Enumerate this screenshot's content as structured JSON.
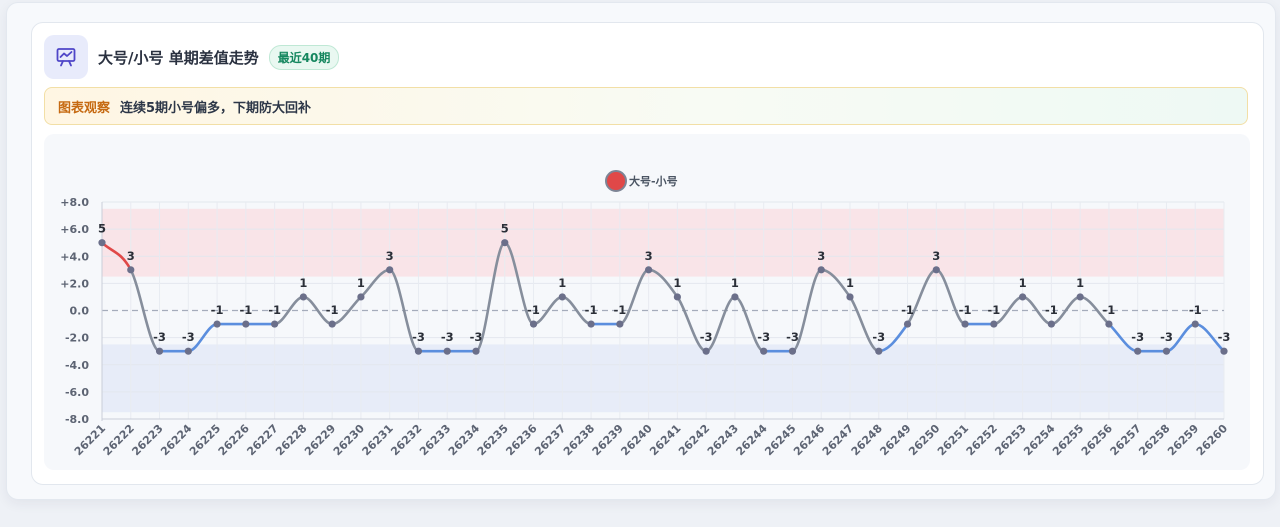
{
  "header": {
    "title": "大号/小号 单期差值走势",
    "badge": "最近40期",
    "icon": "chart-line-icon"
  },
  "observation": {
    "label": "图表观察",
    "text": "连续5期小号偏多，下期防大回补"
  },
  "chart_data": {
    "type": "line",
    "smooth": true,
    "legend": {
      "label": "大号-小号",
      "position": "top-center",
      "color": "#e04848"
    },
    "x": [
      "26221",
      "26222",
      "26223",
      "26224",
      "26225",
      "26226",
      "26227",
      "26228",
      "26229",
      "26230",
      "26231",
      "26232",
      "26233",
      "26234",
      "26235",
      "26236",
      "26237",
      "26238",
      "26239",
      "26240",
      "26241",
      "26242",
      "26243",
      "26244",
      "26245",
      "26246",
      "26247",
      "26248",
      "26249",
      "26250",
      "26251",
      "26252",
      "26253",
      "26254",
      "26255",
      "26256",
      "26257",
      "26258",
      "26259",
      "26260"
    ],
    "series": [
      {
        "name": "大号-小号",
        "values": [
          5,
          3,
          -3,
          -3,
          -1,
          -1,
          -1,
          1,
          -1,
          1,
          3,
          -3,
          -3,
          -3,
          5,
          -1,
          1,
          -1,
          -1,
          3,
          1,
          -3,
          1,
          -3,
          -3,
          3,
          1,
          -3,
          -1,
          3,
          -1,
          -1,
          1,
          -1,
          1,
          -1,
          -3,
          -3,
          -1,
          -3
        ]
      }
    ],
    "ylim": [
      -8,
      8
    ],
    "yticks": [
      8,
      6,
      4,
      2,
      0,
      -2,
      -4,
      -6,
      -8
    ],
    "ytick_labels": [
      "+8.0",
      "+6.0",
      "+4.0",
      "+2.0",
      "0.0",
      "-2.0",
      "-4.0",
      "-6.0",
      "-8.0"
    ],
    "bands": [
      {
        "from": 2.5,
        "to": 7.5,
        "color": "#f9e4e8"
      },
      {
        "from": -7.5,
        "to": -2.5,
        "color": "#e7ecf8"
      }
    ],
    "colors": {
      "high": "#e04848",
      "mid": "#868e9c",
      "low": "#5b8ede",
      "point": "#6b6f8a"
    },
    "grid": true
  }
}
